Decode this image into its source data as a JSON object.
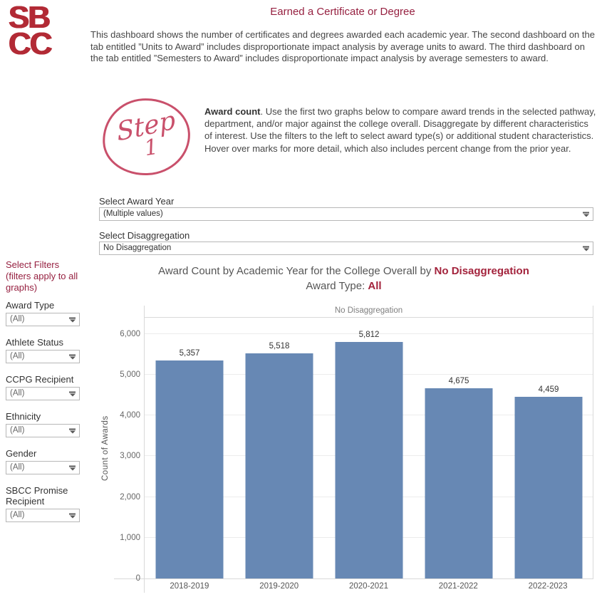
{
  "colors": {
    "maroon": "#962040",
    "logo_red": "#b22a35",
    "highlight_red": "#a3233c",
    "bar_blue": "#6788b4",
    "step_pink": "#c9506b",
    "text_dark": "#464646",
    "text_gray": "#555555",
    "border_gray": "#b7b7b7",
    "gridline": "#ececec"
  },
  "logo": {
    "line1": "SB",
    "line2": "CC"
  },
  "header": {
    "title": "Earned a Certificate or Degree",
    "intro": "This dashboard shows the number of certificates and degrees awarded each academic year. The second dashboard on the tab entitled ”Units to Award” includes disproportionate impact analysis by average units to award. The third dashboard on the tab entitled ”Semesters to Award” includes disproportionate impact analysis by average semesters to award."
  },
  "step": {
    "badge_word": "Step",
    "badge_number": "1",
    "lead": "Award count",
    "text": ". Use the first two graphs below to compare award trends in the selected pathway, department, and/or major against the college overall. Disaggregate by different characteristics of interest. Use the filters to the left to select award type(s) or additional student characteristics. Hover over marks for more detail, which also includes percent change from the prior year."
  },
  "selectors": {
    "award_year": {
      "label": "Select Award Year",
      "value": "(Multiple values)"
    },
    "disaggregation": {
      "label": "Select Disaggregation",
      "value": "No Disaggregation"
    }
  },
  "sidebar": {
    "heading": "Select Filters (filters apply to all graphs)",
    "filters": [
      {
        "label": "Award Type",
        "value": "(All)"
      },
      {
        "label": "Athlete Status",
        "value": "(All)"
      },
      {
        "label": "CCPG Recipient",
        "value": "(All)"
      },
      {
        "label": "Ethnicity",
        "value": "(All)"
      },
      {
        "label": "Gender",
        "value": "(All)"
      },
      {
        "label": "SBCC Promise Recipient",
        "value": "(All)"
      }
    ]
  },
  "chart": {
    "title_plain": "Award Count by Academic Year for the College Overall by ",
    "title_highlight": "No Disaggregation",
    "subtitle_plain": "Award Type: ",
    "subtitle_highlight": "All",
    "panel_header": "No Disaggregation",
    "ylabel": "Count of Awards"
  },
  "chart_data": {
    "type": "bar",
    "title": "Award Count by Academic Year for the College Overall by No Disaggregation — Award Type: All",
    "categories": [
      "2018-2019",
      "2019-2020",
      "2020-2021",
      "2021-2022",
      "2022-2023"
    ],
    "values": [
      5357,
      5518,
      5812,
      4675,
      4459
    ],
    "labels": [
      "5,357",
      "5,518",
      "5,812",
      "4,675",
      "4,459"
    ],
    "xlabel": "",
    "ylabel": "Count of Awards",
    "ylim": [
      0,
      6400
    ],
    "yticks": [
      0,
      1000,
      2000,
      3000,
      4000,
      5000,
      6000
    ],
    "ytick_labels": [
      "0",
      "1,000",
      "2,000",
      "3,000",
      "4,000",
      "5,000",
      "6,000"
    ],
    "bar_color": "#6788b4",
    "grid": true,
    "legend": false
  }
}
